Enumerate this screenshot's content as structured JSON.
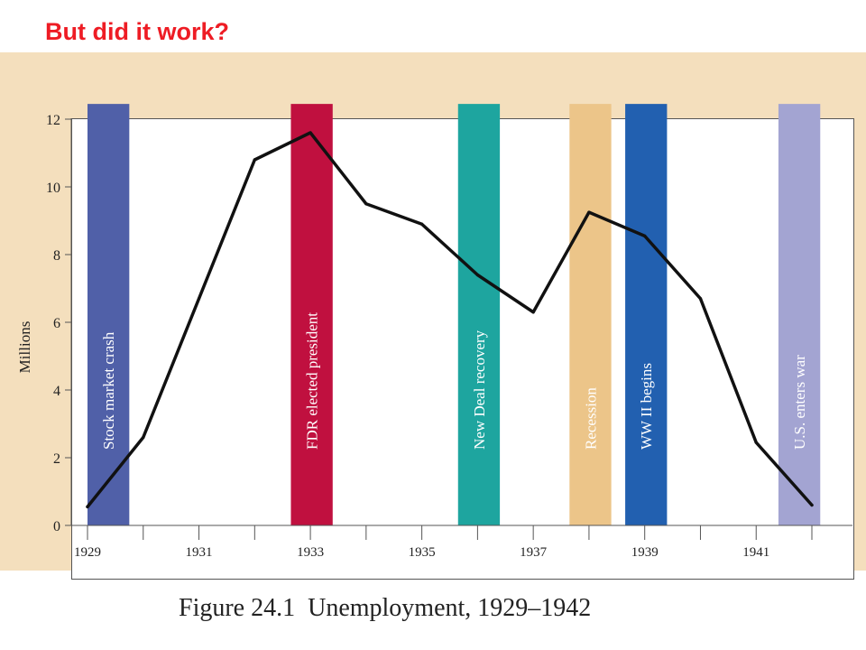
{
  "slide": {
    "title": "But did it work?"
  },
  "figure": {
    "caption": "Figure 24.1  Unemployment, 1929–1942"
  },
  "chart_data": {
    "type": "line",
    "title": "",
    "xlabel": "",
    "ylabel": "Millions",
    "xlim": [
      1928.8,
      1942.5
    ],
    "ylim": [
      0,
      13.3
    ],
    "x_ticks": [
      1929,
      1930,
      1931,
      1932,
      1933,
      1934,
      1935,
      1936,
      1937,
      1938,
      1939,
      1940,
      1941,
      1942
    ],
    "x_tick_labels": [
      {
        "x": 1929,
        "label": "1929"
      },
      {
        "x": 1931,
        "label": "1931"
      },
      {
        "x": 1933,
        "label": "1933"
      },
      {
        "x": 1935,
        "label": "1935"
      },
      {
        "x": 1937,
        "label": "1937"
      },
      {
        "x": 1939,
        "label": "1939"
      },
      {
        "x": 1941,
        "label": "1941"
      }
    ],
    "y_ticks": [
      0,
      2,
      4,
      6,
      8,
      10,
      12
    ],
    "grid": false,
    "series": [
      {
        "x": [
          1929,
          1930,
          1931,
          1932,
          1933,
          1934,
          1935,
          1936,
          1937,
          1938,
          1939,
          1940,
          1941,
          1942
        ],
        "values": [
          0.55,
          2.6,
          6.7,
          10.8,
          11.6,
          9.5,
          8.9,
          7.4,
          6.3,
          9.25,
          8.55,
          6.7,
          2.45,
          0.6
        ],
        "color": "#111111"
      }
    ],
    "events": [
      {
        "label": "Stock market crash",
        "x_start": 1929.0,
        "x_end": 1929.75,
        "color": "#5060a8"
      },
      {
        "label": "FDR elected president",
        "x_start": 1932.65,
        "x_end": 1933.4,
        "color": "#c0103f"
      },
      {
        "label": "New Deal recovery",
        "x_start": 1935.65,
        "x_end": 1936.4,
        "color": "#1ea59f"
      },
      {
        "label": "Recession",
        "x_start": 1937.65,
        "x_end": 1938.4,
        "color": "#ecc589"
      },
      {
        "label": "WW II begins",
        "x_start": 1938.65,
        "x_end": 1939.4,
        "color": "#2260b0"
      },
      {
        "label": "U.S. enters war",
        "x_start": 1941.4,
        "x_end": 1942.15,
        "color": "#a3a4d2"
      }
    ],
    "event_band_top": 12.45
  }
}
